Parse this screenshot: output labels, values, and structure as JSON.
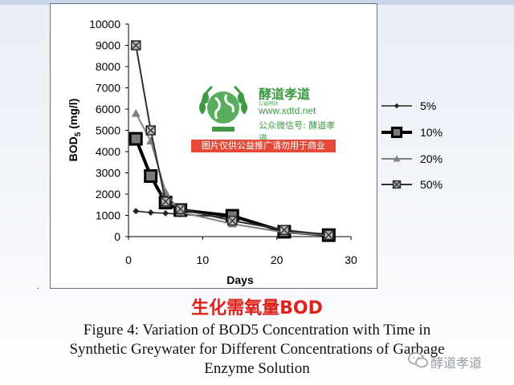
{
  "chart_data": {
    "type": "line",
    "xlabel": "Days",
    "ylabel": "BOD5 (mg/l)",
    "xlim": [
      0,
      30
    ],
    "ylim": [
      0,
      10000
    ],
    "xticks": [
      0,
      10,
      20,
      30
    ],
    "yticks": [
      0,
      1000,
      2000,
      3000,
      4000,
      5000,
      6000,
      7000,
      8000,
      9000,
      10000
    ],
    "grid": false,
    "legend_position": "right",
    "series": [
      {
        "name": "5%",
        "marker": "diamond",
        "color": "#222222",
        "x": [
          1,
          3,
          5,
          7,
          14,
          21,
          27
        ],
        "values": [
          1200,
          1130,
          1100,
          1050,
          900,
          300,
          80
        ]
      },
      {
        "name": "10%",
        "marker": "square",
        "color": "#000000",
        "x": [
          1,
          3,
          5,
          7,
          14,
          21,
          27
        ],
        "values": [
          4600,
          2850,
          1600,
          1250,
          980,
          230,
          70
        ]
      },
      {
        "name": "20%",
        "marker": "triangle",
        "color": "#808080",
        "x": [
          1,
          3,
          5,
          7,
          14,
          21,
          27
        ],
        "values": [
          5800,
          4500,
          2100,
          1150,
          600,
          200,
          60
        ]
      },
      {
        "name": "50%",
        "marker": "xsquare",
        "color": "#303030",
        "x": [
          1,
          3,
          5,
          7,
          14,
          21,
          27
        ],
        "values": [
          9000,
          5000,
          1650,
          1300,
          750,
          310,
          80
        ]
      }
    ]
  },
  "title_cn": "生化需氧量BOD",
  "caption_lines": [
    "Figure 4: Variation of BOD5 Concentration with Time in",
    "Synthetic Greywater for Different Concentrations of Garbage",
    "Enzyme Solution"
  ],
  "watermark": {
    "name": "酵道孝道",
    "small": "公益网站",
    "url": "www.xdtd.net",
    "sub": "公众微信号: 酵道孝道",
    "banner": "图片仅供公益推广请勿用于商业"
  },
  "wechat_label": "酵道孝道",
  "dot": "."
}
